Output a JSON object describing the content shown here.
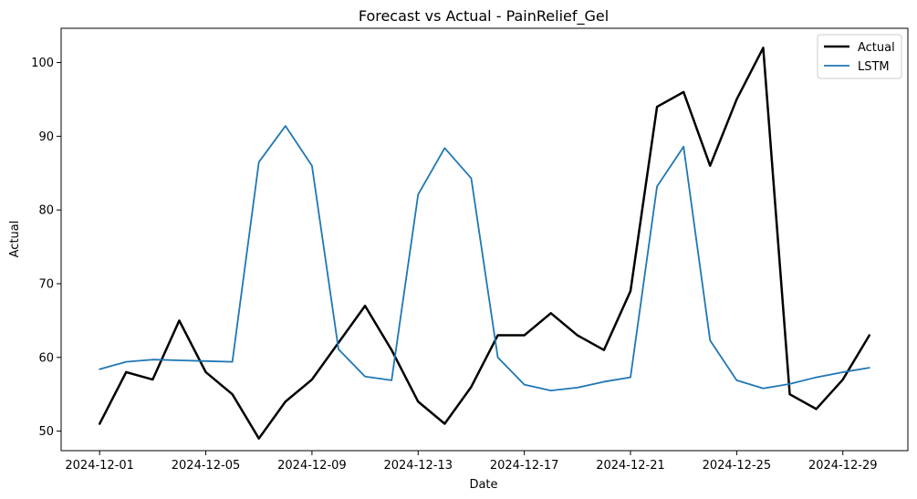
{
  "chart_data": {
    "type": "line",
    "title": "Forecast vs Actual - PainRelief_Gel",
    "xlabel": "Date",
    "ylabel": "Actual",
    "x": [
      "2024-12-01",
      "2024-12-02",
      "2024-12-03",
      "2024-12-04",
      "2024-12-05",
      "2024-12-06",
      "2024-12-07",
      "2024-12-08",
      "2024-12-09",
      "2024-12-10",
      "2024-12-11",
      "2024-12-12",
      "2024-12-13",
      "2024-12-14",
      "2024-12-15",
      "2024-12-16",
      "2024-12-17",
      "2024-12-18",
      "2024-12-19",
      "2024-12-20",
      "2024-12-21",
      "2024-12-22",
      "2024-12-23",
      "2024-12-24",
      "2024-12-25",
      "2024-12-26",
      "2024-12-27",
      "2024-12-28",
      "2024-12-29",
      "2024-12-30"
    ],
    "x_ticks": [
      "2024-12-01",
      "2024-12-05",
      "2024-12-09",
      "2024-12-13",
      "2024-12-17",
      "2024-12-21",
      "2024-12-25",
      "2024-12-29"
    ],
    "y_ticks": [
      50,
      60,
      70,
      80,
      90,
      100
    ],
    "xlim": [
      "2024-11-29.55",
      "2024-12-31.45"
    ],
    "ylim": [
      47.35,
      104.65
    ],
    "legend_position": "top-right",
    "grid": false,
    "series": [
      {
        "name": "Actual",
        "color": "#000000",
        "values": [
          51,
          58,
          57,
          65,
          58,
          55,
          49,
          54,
          57,
          62,
          67,
          61,
          54,
          51,
          56,
          63,
          63,
          66,
          63,
          61,
          69,
          94,
          96,
          86,
          95,
          102,
          55,
          53,
          57,
          63
        ]
      },
      {
        "name": "LSTM",
        "color": "#1f77b4",
        "values": [
          58.4,
          59.4,
          59.7,
          59.6,
          59.5,
          59.4,
          86.5,
          91.4,
          86.0,
          61.1,
          57.4,
          56.9,
          82.1,
          88.4,
          84.3,
          60.0,
          56.3,
          55.5,
          55.9,
          56.7,
          57.3,
          83.2,
          88.6,
          62.3,
          56.9,
          55.8,
          56.4,
          57.3,
          58.0,
          58.6
        ]
      }
    ]
  }
}
